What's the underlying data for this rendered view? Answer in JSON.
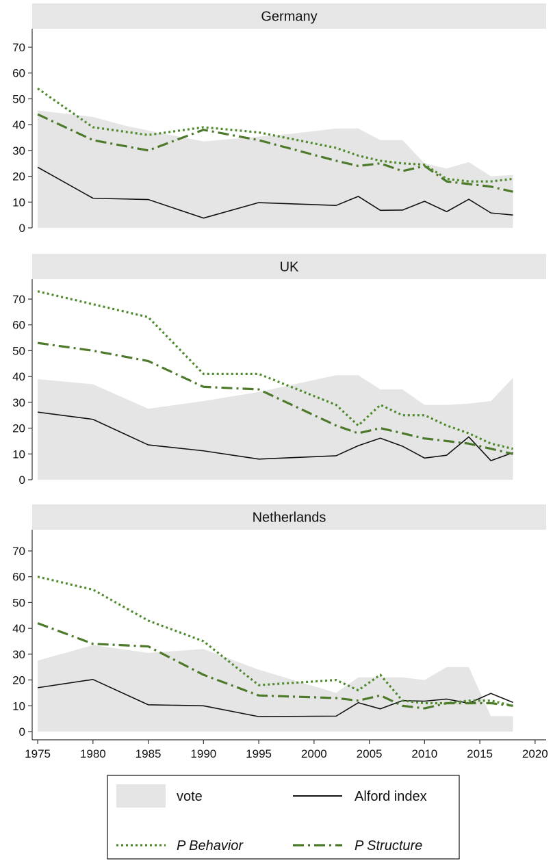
{
  "chart_data": {
    "type": "line",
    "x_ticks": [
      1975,
      1980,
      1985,
      1990,
      1995,
      2000,
      2005,
      2010,
      2015,
      2020
    ],
    "y_ticks": [
      0,
      10,
      20,
      30,
      40,
      50,
      60,
      70
    ],
    "ylim": [
      0,
      75
    ],
    "xlim": [
      1974.5,
      2021
    ],
    "grid": false,
    "legend_position": "bottom",
    "series_names": {
      "vote": "vote",
      "alford": "Alford index",
      "behavior": "P Behavior",
      "structure": "P Structure"
    },
    "colors": {
      "vote_fill": "#e5e5e5",
      "alford": "#111111",
      "behavior": "#4d8a2a",
      "structure": "#4d7a2a"
    },
    "panels": [
      {
        "title": "Germany",
        "vote": {
          "x": [
            1975,
            1980,
            1983,
            1987,
            1990,
            1994,
            1998,
            2002,
            2004,
            2006,
            2008,
            2010,
            2012,
            2014,
            2016,
            2018
          ],
          "y": [
            45.5,
            43,
            39.5,
            36,
            33.5,
            35,
            36.5,
            38.5,
            38.5,
            34,
            34,
            25,
            23,
            25.5,
            20,
            20.5
          ]
        },
        "alford": {
          "x": [
            1975,
            1980,
            1985,
            1990,
            1995,
            2002,
            2004,
            2006,
            2008,
            2010,
            2012,
            2014,
            2016,
            2018
          ],
          "y": [
            23.5,
            11.5,
            11,
            3.8,
            9.8,
            8.7,
            12.2,
            6.8,
            6.9,
            10.3,
            6.3,
            11.1,
            5.8,
            5
          ]
        },
        "behavior": {
          "x": [
            1975,
            1980,
            1985,
            1990,
            1995,
            2002,
            2004,
            2006,
            2008,
            2010,
            2012,
            2014,
            2016,
            2018
          ],
          "y": [
            54,
            39,
            36,
            39,
            37,
            31,
            28,
            26,
            25,
            24.5,
            19,
            18,
            18,
            19
          ]
        },
        "structure": {
          "x": [
            1975,
            1980,
            1985,
            1990,
            1995,
            2002,
            2004,
            2006,
            2008,
            2010,
            2012,
            2014,
            2016,
            2018
          ],
          "y": [
            44,
            34,
            30,
            38,
            34,
            26,
            24,
            25,
            22,
            24,
            18,
            17,
            16,
            14
          ]
        }
      },
      {
        "title": "UK",
        "vote": {
          "x": [
            1975,
            1980,
            1985,
            1990,
            1995,
            2002,
            2004,
            2006,
            2008,
            2010,
            2012,
            2014,
            2016,
            2018
          ],
          "y": [
            39,
            37,
            27.5,
            30.5,
            34,
            40.5,
            40.5,
            35,
            35,
            29,
            29,
            29.5,
            30.5,
            39.5
          ]
        },
        "alford": {
          "x": [
            1975,
            1980,
            1985,
            1990,
            1995,
            2002,
            2004,
            2006,
            2008,
            2010,
            2012,
            2014,
            2016,
            2018
          ],
          "y": [
            26.2,
            23.4,
            13.5,
            11.2,
            8,
            9.3,
            13.2,
            16.1,
            13,
            8.4,
            9.5,
            16.6,
            7.4,
            10.5
          ]
        },
        "behavior": {
          "x": [
            1975,
            1980,
            1985,
            1990,
            1995,
            2002,
            2004,
            2006,
            2008,
            2010,
            2012,
            2014,
            2016,
            2018
          ],
          "y": [
            73,
            68,
            63,
            41,
            41,
            29,
            21,
            29,
            25,
            25,
            21,
            18,
            14,
            12
          ]
        },
        "structure": {
          "x": [
            1975,
            1980,
            1985,
            1990,
            1995,
            2002,
            2004,
            2006,
            2008,
            2010,
            2012,
            2014,
            2016,
            2018
          ],
          "y": [
            53,
            50,
            46,
            36,
            35,
            21,
            18,
            20,
            18,
            16,
            15,
            14,
            12,
            10
          ]
        }
      },
      {
        "title": "Netherlands",
        "vote": {
          "x": [
            1975,
            1980,
            1985,
            1990,
            1995,
            2002,
            2004,
            2006,
            2008,
            2010,
            2012,
            2014,
            2016,
            2018
          ],
          "y": [
            27.5,
            33.5,
            30.5,
            32,
            24,
            15,
            21,
            21,
            21,
            20,
            25,
            25,
            6,
            6
          ]
        },
        "alford": {
          "x": [
            1975,
            1980,
            1985,
            1990,
            1995,
            2002,
            2004,
            2006,
            2008,
            2010,
            2012,
            2014,
            2016,
            2018
          ],
          "y": [
            17,
            20.2,
            10.4,
            10,
            5.8,
            6,
            11.2,
            8.8,
            12,
            11.8,
            12.6,
            11,
            14.8,
            11.3
          ]
        },
        "behavior": {
          "x": [
            1975,
            1980,
            1985,
            1990,
            1995,
            2002,
            2004,
            2006,
            2008,
            2010,
            2012,
            2014,
            2016,
            2018
          ],
          "y": [
            60,
            55,
            43,
            35,
            18,
            20,
            16,
            22,
            12,
            11,
            11,
            12,
            12,
            10
          ]
        },
        "structure": {
          "x": [
            1975,
            1980,
            1985,
            1990,
            1995,
            2002,
            2004,
            2006,
            2008,
            2010,
            2012,
            2014,
            2016,
            2018
          ],
          "y": [
            42,
            34,
            33,
            22,
            14,
            13,
            12,
            14,
            10,
            9,
            11,
            11,
            11,
            10
          ]
        }
      }
    ]
  }
}
